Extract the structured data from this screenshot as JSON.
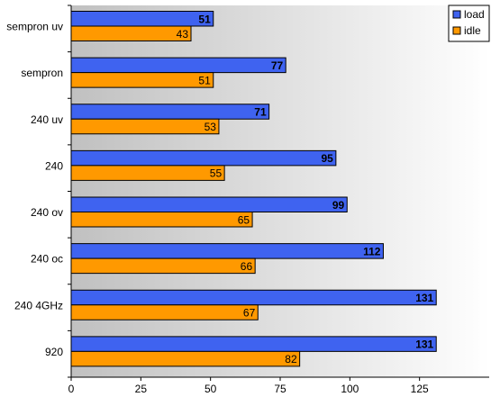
{
  "chart_data": {
    "type": "bar",
    "orientation": "horizontal",
    "categories": [
      "sempron uv",
      "sempron",
      "240 uv",
      "240",
      "240 ov",
      "240 oc",
      "240 4GHz",
      "920"
    ],
    "series": [
      {
        "name": "load",
        "values": [
          51,
          77,
          71,
          95,
          99,
          112,
          131,
          131
        ]
      },
      {
        "name": "idle",
        "values": [
          43,
          51,
          53,
          55,
          65,
          66,
          67,
          82
        ]
      }
    ],
    "xlim": [
      0,
      150
    ],
    "xticks": [
      0,
      25,
      50,
      75,
      100,
      125
    ],
    "grid": false,
    "legend_position": "top-right",
    "colors": {
      "load": "#3f63f0",
      "idle": "#ff9900",
      "plot_gradient_left": "#c0c0c0",
      "plot_gradient_right": "#ffffff"
    }
  }
}
